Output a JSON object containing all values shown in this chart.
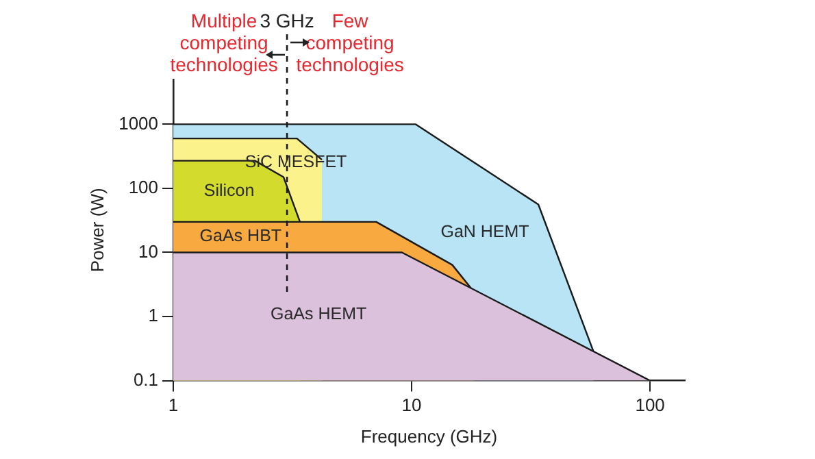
{
  "chart_data": {
    "type": "area",
    "xlabel": "Frequency (GHz)",
    "ylabel": "Power (W)",
    "log": "xy",
    "xlim": [
      1,
      140
    ],
    "xticks": [
      1,
      10,
      100
    ],
    "ylim": [
      0.1,
      5000
    ],
    "yticks": [
      0.1,
      1,
      10,
      100,
      1000
    ],
    "grid": false,
    "legend": false,
    "marker": "none",
    "series": [
      {
        "name": "GaN HEMT",
        "color": "#b9e4f6",
        "x": [
          1,
          10.4,
          34,
          58
        ],
        "values": [
          1000,
          1000,
          56,
          0.28
        ]
      },
      {
        "name": "SiC MESFET",
        "color": "#fcf28c",
        "x": [
          1,
          3.3,
          4.2
        ],
        "values": [
          600,
          600,
          280
        ]
      },
      {
        "name": "Silicon",
        "color": "#d3db2c",
        "x": [
          1,
          2.2,
          2.9,
          3.4
        ],
        "values": [
          270,
          270,
          150,
          30
        ]
      },
      {
        "name": "GaAs HBT",
        "color": "#f8aa40",
        "x": [
          1,
          7.1,
          14.8,
          18.3
        ],
        "values": [
          30,
          30,
          6.4,
          2.4
        ]
      },
      {
        "name": "GaAs HEMT",
        "color": "#dcc1dd",
        "x": [
          1,
          9.1,
          100
        ],
        "values": [
          10,
          10,
          0.1
        ]
      }
    ],
    "ref_lines": [
      {
        "axis": "x",
        "value": 3,
        "label": "3 GHz",
        "line_style": "dashed"
      }
    ],
    "annotations": [
      "Multiple\ncompeting\ntechnologies",
      "Few\ncompeting\ntechnologies"
    ]
  }
}
